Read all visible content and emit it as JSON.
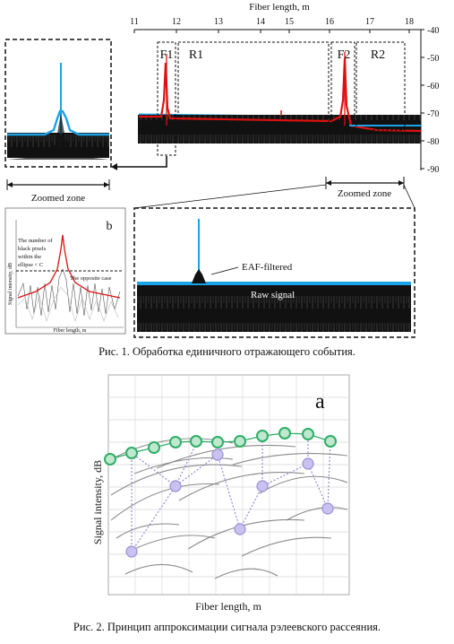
{
  "figure1": {
    "main_chart": {
      "top_axis_label": "Fiber length, m",
      "x_ticks": [
        "11",
        "12",
        "13",
        "14",
        "15",
        "16",
        "17",
        "18"
      ],
      "y_ticks": [
        "-40",
        "-50",
        "-60",
        "-70",
        "-80",
        "-90"
      ],
      "region_labels": {
        "f1": "F1",
        "r1": "R1",
        "f2": "F2",
        "r2": "R2"
      }
    },
    "zoomed_zone_left": "Zoomed zone",
    "zoomed_zone_right": "Zoomed zone",
    "zoom_lower": {
      "eaf_label": "EAF-filtered",
      "raw_label": "Raw signal"
    },
    "inset_b": {
      "panel_letter": "b",
      "ylabel": "Signal intensity, dB",
      "xlabel": "Fiber length, m",
      "note_lines": [
        "The number of",
        "black pixels",
        "within the",
        "ellipse < C"
      ],
      "opposite_label": "The opposite case"
    },
    "caption": "Рис. 1.  Обработка единичного отражающего события."
  },
  "figure2": {
    "panel_letter": "a",
    "ylabel": "Signal intensity, dB",
    "xlabel": "Fiber length, m",
    "caption": "Рис. 2. Принцип аппроксимации сигнала рэлеевского рассеяния."
  },
  "colors": {
    "raw": "#000000",
    "eaf": "#1aa3e8",
    "red": "#e01010",
    "green": "#2fae66",
    "purple": "#9b8fd6"
  }
}
